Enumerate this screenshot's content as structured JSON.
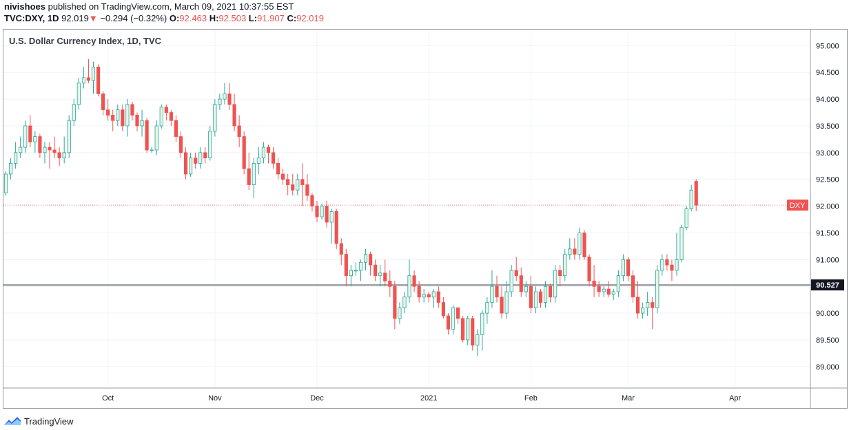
{
  "header": {
    "author": "nivishoes",
    "published_text": "published on TradingView.com, March 09, 2021 10:37:55 EST",
    "symbol": "TVC:DXY, 1D",
    "last": "92.019",
    "change": "−0.294 (−0.32%)",
    "o_label": "O:",
    "o": "92.463",
    "h_label": "H:",
    "h": "92.503",
    "l_label": "L:",
    "l": "91.907",
    "c_label": "C:",
    "c": "92.019"
  },
  "footer": {
    "brand": "TradingView"
  },
  "colors": {
    "up": "#26a69a",
    "up_fill": "#e8f5e9",
    "down": "#ef5350",
    "grid": "#f0f3fa",
    "axis": "#9598a1"
  },
  "chart_data": {
    "type": "candlestick",
    "title": "U.S. Dollar Currency Index, 1D, TVC",
    "ylim": [
      88.6,
      95.3
    ],
    "y_ticks": [
      "89.000",
      "89.500",
      "90.000",
      "90.500",
      "91.000",
      "91.500",
      "92.000",
      "92.500",
      "93.000",
      "93.500",
      "94.000",
      "94.500",
      "95.000"
    ],
    "x_ticks": [
      {
        "label": "Oct",
        "index": 21
      },
      {
        "label": "Nov",
        "index": 43
      },
      {
        "label": "Dec",
        "index": 64
      },
      {
        "label": "2021",
        "index": 87
      },
      {
        "label": "Feb",
        "index": 108
      },
      {
        "label": "Mar",
        "index": 128
      },
      {
        "label": "Apr",
        "index": 150
      }
    ],
    "total_slots": 166,
    "last_price_label": "DXY",
    "last_price": 92.019,
    "horizontal_line": {
      "value": 90.527,
      "label": "90.527"
    },
    "candles": [
      [
        92.25,
        92.65,
        92.2,
        92.6
      ],
      [
        92.6,
        92.9,
        92.5,
        92.8
      ],
      [
        92.8,
        93.2,
        92.7,
        93.0
      ],
      [
        93.0,
        93.3,
        92.9,
        93.1
      ],
      [
        93.1,
        93.6,
        93.0,
        93.5
      ],
      [
        93.5,
        93.7,
        93.1,
        93.2
      ],
      [
        93.2,
        93.4,
        93.0,
        93.3
      ],
      [
        93.3,
        93.35,
        92.9,
        93.0
      ],
      [
        93.0,
        93.2,
        92.8,
        93.1
      ],
      [
        93.1,
        93.2,
        92.7,
        93.05
      ],
      [
        93.05,
        93.3,
        92.9,
        93.0
      ],
      [
        93.0,
        93.1,
        92.75,
        92.9
      ],
      [
        92.9,
        93.3,
        92.8,
        93.0
      ],
      [
        93.0,
        93.7,
        92.9,
        93.6
      ],
      [
        93.6,
        94.0,
        93.5,
        93.9
      ],
      [
        93.9,
        94.4,
        93.8,
        94.3
      ],
      [
        94.3,
        94.6,
        94.2,
        94.4
      ],
      [
        94.4,
        94.75,
        94.3,
        94.35
      ],
      [
        94.35,
        94.7,
        94.1,
        94.6
      ],
      [
        94.6,
        94.65,
        94.05,
        94.1
      ],
      [
        94.1,
        94.15,
        93.7,
        93.8
      ],
      [
        93.8,
        94.0,
        93.6,
        93.7
      ],
      [
        93.7,
        93.8,
        93.4,
        93.6
      ],
      [
        93.6,
        93.9,
        93.5,
        93.8
      ],
      [
        93.8,
        93.9,
        93.4,
        93.5
      ],
      [
        93.5,
        94.0,
        93.3,
        93.9
      ],
      [
        93.9,
        93.95,
        93.6,
        93.7
      ],
      [
        93.7,
        93.75,
        93.4,
        93.5
      ],
      [
        93.5,
        93.8,
        93.3,
        93.6
      ],
      [
        93.6,
        93.65,
        93.0,
        93.05
      ],
      [
        93.05,
        93.1,
        93.0,
        93.05
      ],
      [
        93.05,
        93.6,
        92.95,
        93.5
      ],
      [
        93.5,
        93.9,
        93.45,
        93.85
      ],
      [
        93.85,
        93.9,
        93.6,
        93.75
      ],
      [
        93.75,
        93.8,
        93.5,
        93.6
      ],
      [
        93.6,
        93.7,
        93.2,
        93.3
      ],
      [
        93.3,
        93.4,
        92.9,
        93.0
      ],
      [
        93.0,
        93.1,
        92.5,
        92.6
      ],
      [
        92.6,
        93.0,
        92.55,
        92.9
      ],
      [
        92.9,
        93.0,
        92.7,
        92.8
      ],
      [
        92.8,
        93.1,
        92.7,
        93.0
      ],
      [
        93.0,
        93.1,
        92.8,
        92.9
      ],
      [
        92.9,
        93.5,
        92.85,
        93.4
      ],
      [
        93.4,
        94.0,
        93.3,
        93.9
      ],
      [
        93.9,
        94.1,
        93.8,
        94.0
      ],
      [
        94.0,
        94.3,
        93.9,
        94.1
      ],
      [
        94.1,
        94.3,
        93.8,
        93.9
      ],
      [
        93.9,
        94.1,
        93.4,
        93.5
      ],
      [
        93.5,
        93.7,
        93.1,
        93.3
      ],
      [
        93.3,
        93.4,
        92.6,
        92.7
      ],
      [
        92.7,
        93.0,
        92.3,
        92.4
      ],
      [
        92.4,
        92.9,
        92.15,
        92.8
      ],
      [
        92.8,
        93.1,
        92.6,
        92.9
      ],
      [
        92.9,
        93.2,
        92.8,
        93.1
      ],
      [
        93.1,
        93.15,
        92.8,
        93.0
      ],
      [
        93.0,
        93.1,
        92.7,
        92.8
      ],
      [
        92.8,
        92.9,
        92.5,
        92.6
      ],
      [
        92.6,
        92.7,
        92.4,
        92.5
      ],
      [
        92.5,
        92.6,
        92.2,
        92.4
      ],
      [
        92.4,
        92.6,
        92.2,
        92.3
      ],
      [
        92.3,
        92.6,
        92.2,
        92.5
      ],
      [
        92.5,
        92.8,
        92.0,
        92.4
      ],
      [
        92.4,
        92.6,
        92.1,
        92.2
      ],
      [
        92.2,
        92.25,
        91.9,
        92.0
      ],
      [
        92.0,
        92.1,
        91.7,
        91.8
      ],
      [
        91.8,
        92.05,
        91.75,
        92.0
      ],
      [
        92.0,
        92.1,
        91.6,
        91.7
      ],
      [
        91.7,
        91.95,
        91.3,
        91.9
      ],
      [
        91.9,
        91.95,
        91.2,
        91.3
      ],
      [
        91.3,
        91.4,
        90.9,
        91.1
      ],
      [
        91.1,
        91.2,
        90.5,
        90.7
      ],
      [
        90.7,
        90.9,
        90.5,
        90.8
      ],
      [
        90.8,
        90.95,
        90.7,
        90.8
      ],
      [
        90.8,
        91.0,
        90.6,
        90.95
      ],
      [
        90.95,
        91.2,
        90.8,
        91.1
      ],
      [
        91.1,
        91.15,
        90.7,
        90.9
      ],
      [
        90.9,
        91.0,
        90.6,
        90.7
      ],
      [
        90.7,
        90.9,
        90.5,
        90.75
      ],
      [
        90.75,
        91.0,
        90.5,
        90.6
      ],
      [
        90.6,
        90.8,
        90.3,
        90.5
      ],
      [
        90.5,
        90.6,
        89.7,
        89.9
      ],
      [
        89.9,
        90.2,
        89.8,
        90.1
      ],
      [
        90.1,
        90.4,
        90.0,
        90.3
      ],
      [
        90.3,
        91.0,
        90.2,
        90.7
      ],
      [
        90.7,
        90.8,
        90.4,
        90.5
      ],
      [
        90.5,
        90.6,
        90.2,
        90.3
      ],
      [
        90.3,
        90.45,
        90.2,
        90.35
      ],
      [
        90.35,
        90.4,
        90.2,
        90.3
      ],
      [
        90.3,
        90.45,
        90.1,
        90.4
      ],
      [
        90.4,
        90.5,
        90.1,
        90.2
      ],
      [
        90.2,
        90.3,
        89.9,
        89.95
      ],
      [
        89.95,
        90.0,
        89.6,
        89.7
      ],
      [
        89.7,
        90.15,
        89.6,
        90.1
      ],
      [
        90.1,
        90.1,
        89.8,
        89.9
      ],
      [
        89.9,
        89.95,
        89.45,
        89.5
      ],
      [
        89.5,
        89.95,
        89.4,
        89.9
      ],
      [
        89.9,
        89.95,
        89.3,
        89.4
      ],
      [
        89.4,
        89.7,
        89.2,
        89.6
      ],
      [
        89.6,
        90.05,
        89.3,
        90.0
      ],
      [
        90.0,
        90.3,
        89.8,
        90.2
      ],
      [
        90.2,
        90.8,
        90.1,
        90.5
      ],
      [
        90.5,
        90.7,
        90.2,
        90.3
      ],
      [
        90.3,
        90.5,
        89.9,
        90.0
      ],
      [
        90.0,
        90.6,
        89.9,
        90.4
      ],
      [
        90.4,
        90.9,
        90.3,
        90.8
      ],
      [
        90.8,
        91.05,
        90.6,
        90.7
      ],
      [
        90.7,
        90.85,
        90.3,
        90.4
      ],
      [
        90.4,
        90.6,
        90.3,
        90.5
      ],
      [
        90.5,
        90.7,
        90.0,
        90.1
      ],
      [
        90.1,
        90.5,
        90.0,
        90.4
      ],
      [
        90.4,
        90.45,
        90.1,
        90.2
      ],
      [
        90.2,
        90.6,
        90.1,
        90.5
      ],
      [
        90.5,
        90.55,
        90.2,
        90.3
      ],
      [
        90.3,
        90.9,
        90.2,
        90.8
      ],
      [
        90.8,
        90.9,
        90.5,
        90.7
      ],
      [
        90.7,
        91.2,
        90.6,
        91.1
      ],
      [
        91.1,
        91.4,
        91.0,
        91.2
      ],
      [
        91.2,
        91.4,
        91.0,
        91.1
      ],
      [
        91.1,
        91.6,
        91.0,
        91.5
      ],
      [
        91.5,
        91.55,
        91.0,
        91.05
      ],
      [
        91.05,
        91.1,
        90.5,
        90.6
      ],
      [
        90.6,
        90.9,
        90.3,
        90.5
      ],
      [
        90.5,
        90.6,
        90.3,
        90.4
      ],
      [
        90.4,
        90.5,
        90.3,
        90.45
      ],
      [
        90.45,
        90.6,
        90.3,
        90.35
      ],
      [
        90.35,
        90.45,
        90.25,
        90.4
      ],
      [
        90.4,
        90.8,
        90.3,
        90.7
      ],
      [
        90.7,
        91.1,
        90.6,
        91.0
      ],
      [
        91.0,
        91.05,
        90.6,
        90.7
      ],
      [
        90.7,
        90.8,
        90.2,
        90.3
      ],
      [
        90.3,
        90.6,
        89.9,
        90.0
      ],
      [
        90.0,
        90.2,
        89.9,
        90.1
      ],
      [
        90.1,
        90.4,
        89.95,
        90.2
      ],
      [
        90.2,
        90.3,
        89.7,
        90.1
      ],
      [
        90.1,
        90.9,
        90.0,
        90.8
      ],
      [
        90.8,
        91.1,
        90.7,
        91.0
      ],
      [
        91.0,
        91.1,
        90.8,
        90.9
      ],
      [
        90.9,
        91.0,
        90.6,
        90.8
      ],
      [
        90.8,
        91.5,
        90.7,
        91.0
      ],
      [
        91.0,
        91.65,
        90.95,
        91.6
      ],
      [
        91.6,
        92.0,
        91.55,
        91.95
      ],
      [
        91.95,
        92.4,
        91.9,
        92.3
      ],
      [
        92.463,
        92.503,
        91.907,
        92.019
      ]
    ]
  }
}
